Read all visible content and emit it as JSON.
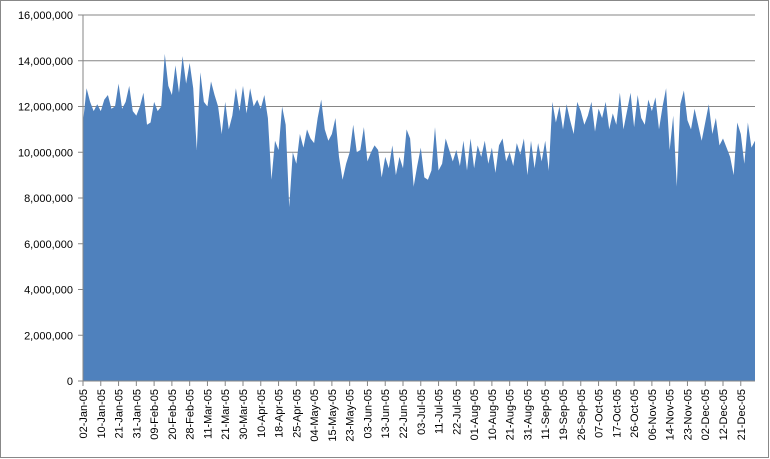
{
  "chart_data": {
    "type": "area",
    "color": "#4f81bd",
    "grid": true,
    "categories": [
      "02-Jan-05",
      null,
      null,
      null,
      null,
      "10-Jan-05",
      null,
      null,
      null,
      null,
      "21-Jan-05",
      null,
      null,
      null,
      null,
      "31-Jan-05",
      null,
      null,
      null,
      null,
      "09-Feb-05",
      null,
      null,
      null,
      null,
      "20-Feb-05",
      null,
      null,
      null,
      null,
      "28-Feb-05",
      null,
      null,
      null,
      null,
      "11-Mar-05",
      null,
      null,
      null,
      null,
      "21-Mar-05",
      null,
      null,
      null,
      null,
      "30-Mar-05",
      null,
      null,
      null,
      null,
      "10-Apr-05",
      null,
      null,
      null,
      null,
      "18-Apr-05",
      null,
      null,
      null,
      null,
      "25-Apr-05",
      null,
      null,
      null,
      null,
      "04-May-05",
      null,
      null,
      null,
      null,
      "15-May-05",
      null,
      null,
      null,
      null,
      "23-May-05",
      null,
      null,
      null,
      null,
      "03-Jun-05",
      null,
      null,
      null,
      null,
      "13-Jun-05",
      null,
      null,
      null,
      null,
      "22-Jun-05",
      null,
      null,
      null,
      null,
      "03-Jul-05",
      null,
      null,
      null,
      null,
      "11-Jul-05",
      null,
      null,
      null,
      null,
      "22-Jul-05",
      null,
      null,
      null,
      null,
      "01-Aug-05",
      null,
      null,
      null,
      null,
      "10-Aug-05",
      null,
      null,
      null,
      null,
      "21-Aug-05",
      null,
      null,
      null,
      null,
      "31-Aug-05",
      null,
      null,
      null,
      null,
      "11-Sep-05",
      null,
      null,
      null,
      null,
      "19-Sep-05",
      null,
      null,
      null,
      null,
      "26-Sep-05",
      null,
      null,
      null,
      null,
      "07-Oct-05",
      null,
      null,
      null,
      null,
      "17-Oct-05",
      null,
      null,
      null,
      null,
      "26-Oct-05",
      null,
      null,
      null,
      null,
      "06-Nov-05",
      null,
      null,
      null,
      null,
      "14-Nov-05",
      null,
      null,
      null,
      null,
      "23-Nov-05",
      null,
      null,
      null,
      null,
      "02-Dec-05",
      null,
      null,
      null,
      null,
      "12-Dec-05",
      null,
      null,
      null,
      null,
      "21-Dec-05",
      null,
      null,
      null,
      null
    ],
    "values": [
      11300000,
      12800000,
      12200000,
      11800000,
      12100000,
      11800000,
      12300000,
      12500000,
      11900000,
      12000000,
      13000000,
      11900000,
      12200000,
      12900000,
      11800000,
      11600000,
      12000000,
      12600000,
      11200000,
      11300000,
      12200000,
      11800000,
      12000000,
      14300000,
      12900000,
      12500000,
      13800000,
      12600000,
      14200000,
      13000000,
      13900000,
      12800000,
      10100000,
      13500000,
      12200000,
      12000000,
      13100000,
      12500000,
      12000000,
      10800000,
      12200000,
      11000000,
      11600000,
      12800000,
      11800000,
      12900000,
      11700000,
      12800000,
      12000000,
      12300000,
      11900000,
      12500000,
      11500000,
      8800000,
      10500000,
      10100000,
      12000000,
      11200000,
      7600000,
      10000000,
      9500000,
      10800000,
      10200000,
      11000000,
      10600000,
      10400000,
      11500000,
      12300000,
      11000000,
      10500000,
      10800000,
      11500000,
      9800000,
      8800000,
      9500000,
      10000000,
      11200000,
      10000000,
      10100000,
      11100000,
      9600000,
      10000000,
      10300000,
      10100000,
      8900000,
      9800000,
      9300000,
      10300000,
      9000000,
      9800000,
      9300000,
      11000000,
      10600000,
      8500000,
      9400000,
      10200000,
      8900000,
      8800000,
      9200000,
      11100000,
      9200000,
      9500000,
      10600000,
      10100000,
      9600000,
      10100000,
      9400000,
      10500000,
      9200000,
      10600000,
      9300000,
      10300000,
      9800000,
      10500000,
      9500000,
      10200000,
      9100000,
      10300000,
      10600000,
      9600000,
      10000000,
      9400000,
      10400000,
      9900000,
      10600000,
      9000000,
      10500000,
      9300000,
      10400000,
      9600000,
      10500000,
      9200000,
      12200000,
      11300000,
      12000000,
      11000000,
      12100000,
      11400000,
      10800000,
      12200000,
      11800000,
      11200000,
      11600000,
      12200000,
      10900000,
      11900000,
      11500000,
      12200000,
      11000000,
      11700000,
      11200000,
      12600000,
      11000000,
      11800000,
      12600000,
      11100000,
      12500000,
      11500000,
      11200000,
      12300000,
      11800000,
      12400000,
      11000000,
      12000000,
      12800000,
      10100000,
      11600000,
      8500000,
      12100000,
      12700000,
      11400000,
      11000000,
      11900000,
      11200000,
      10500000,
      11300000,
      12100000,
      10800000,
      11500000,
      10300000,
      10600000,
      10200000,
      9800000,
      9000000,
      11300000,
      10800000,
      9500000,
      11300000,
      10200000,
      10500000
    ],
    "ylim": [
      0,
      16000000
    ],
    "yticks": [
      {
        "value": 0,
        "label": "0"
      },
      {
        "value": 2000000,
        "label": "2,000,000"
      },
      {
        "value": 4000000,
        "label": "4,000,000"
      },
      {
        "value": 6000000,
        "label": "6,000,000"
      },
      {
        "value": 8000000,
        "label": "8,000,000"
      },
      {
        "value": 10000000,
        "label": "10,000,000"
      },
      {
        "value": 12000000,
        "label": "12,000,000"
      },
      {
        "value": 14000000,
        "label": "14,000,000"
      },
      {
        "value": 16000000,
        "label": "16,000,000"
      }
    ]
  }
}
